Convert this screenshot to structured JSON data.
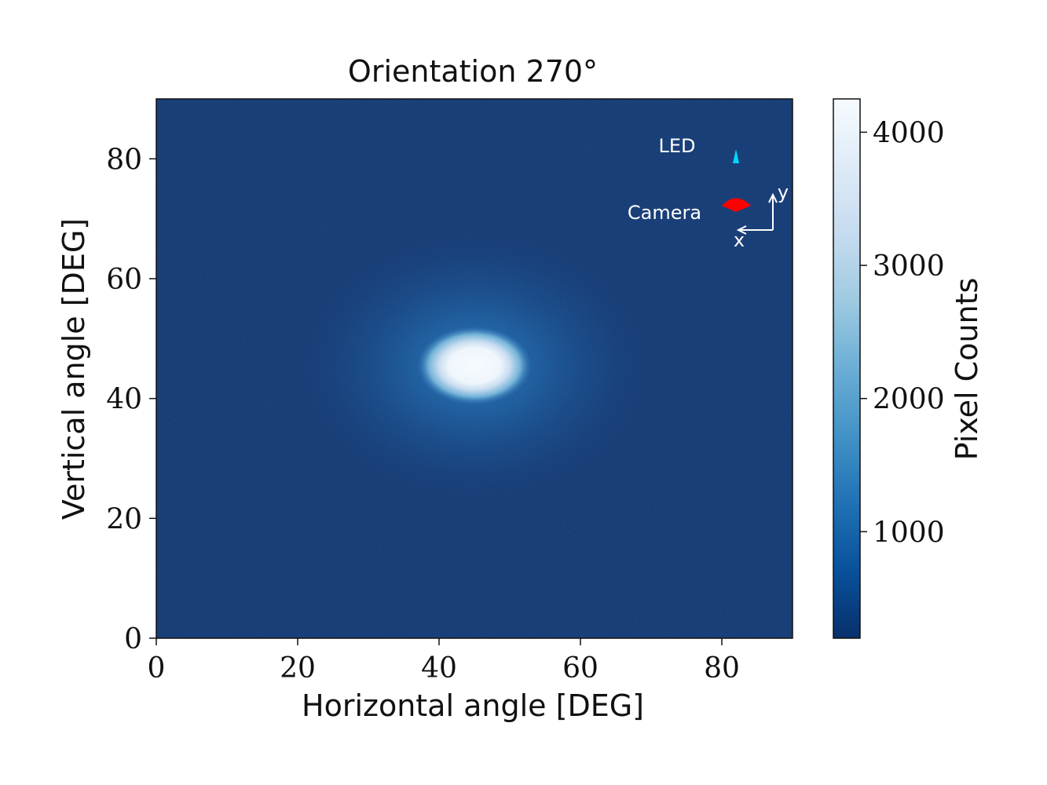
{
  "chart_data": {
    "type": "heatmap",
    "title": "Orientation 270°",
    "xlabel": "Horizontal angle [DEG]",
    "ylabel": "Vertical angle [DEG]",
    "xlim": [
      0,
      90
    ],
    "ylim": [
      0,
      90
    ],
    "xticks": [
      0,
      20,
      40,
      60,
      80
    ],
    "yticks": [
      0,
      20,
      40,
      60,
      80
    ],
    "hotspot": {
      "center": [
        45,
        45.5
      ],
      "peak": 4200,
      "background": 250,
      "core_radius": [
        6,
        4.5
      ]
    },
    "colorbar": {
      "label": "Pixel Counts",
      "range": [
        200,
        4250
      ],
      "ticks": [
        1000,
        2000,
        3000,
        4000
      ],
      "colormap": "Blues_r",
      "colors": [
        "#08306b",
        "#08519c",
        "#2171b5",
        "#4292c6",
        "#6baed6",
        "#9ecae1",
        "#c6dbef",
        "#deebf7",
        "#f7fbff"
      ]
    },
    "annotations": {
      "led_label": "LED",
      "camera_label": "Camera",
      "axis_x_label": "x",
      "axis_y_label": "y",
      "led_color": "#00d8ff",
      "camera_color": "#ff0000",
      "led_icon": "led-triangle-icon",
      "camera_icon": "camera-fan-icon"
    }
  }
}
